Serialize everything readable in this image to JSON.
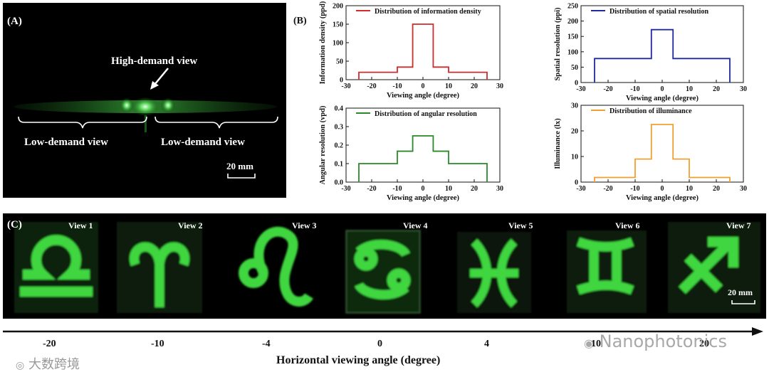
{
  "panel_a": {
    "label": "(A)",
    "high_demand": "High-demand view",
    "low_demand_left": "Low-demand view",
    "low_demand_right": "Low-demand view",
    "scale": "20 mm"
  },
  "panel_b": {
    "label": "(B)"
  },
  "chart_data": [
    {
      "type": "line",
      "title": "Distribution of information density",
      "color": "#d02c2c",
      "xlabel": "Viewing angle (degree)",
      "ylabel": "Information density (ppd)",
      "xlim": [
        -30,
        30
      ],
      "ylim": [
        0,
        200
      ],
      "xticks": [
        -30,
        -20,
        -10,
        0,
        10,
        20,
        30
      ],
      "yticks": [
        0,
        50,
        100,
        150,
        200
      ],
      "x": [
        -25,
        -25,
        -10,
        -10,
        -4,
        -4,
        4,
        4,
        10,
        10,
        25,
        25
      ],
      "y": [
        0,
        20,
        20,
        34,
        34,
        150,
        150,
        34,
        34,
        20,
        20,
        0
      ]
    },
    {
      "type": "line",
      "title": "Distribution of spatial resolution",
      "color": "#1e2a9e",
      "xlabel": "Viewing angle (degree)",
      "ylabel": "Spatial resolution (ppi)",
      "xlim": [
        -30,
        30
      ],
      "ylim": [
        0,
        250
      ],
      "xticks": [
        -30,
        -20,
        -10,
        0,
        10,
        20,
        30
      ],
      "yticks": [
        0,
        50,
        100,
        150,
        200,
        250
      ],
      "x": [
        -25,
        -25,
        -4,
        -4,
        4,
        4,
        25,
        25
      ],
      "y": [
        0,
        78,
        78,
        172,
        172,
        78,
        78,
        0
      ]
    },
    {
      "type": "line",
      "title": "Distribution of angular resolution",
      "color": "#2a8a2a",
      "xlabel": "Viewing angle (degree)",
      "ylabel": "Angular resolution (vpd)",
      "xlim": [
        -30,
        30
      ],
      "ylim": [
        0,
        0.4
      ],
      "xticks": [
        -30,
        -20,
        -10,
        0,
        10,
        20,
        30
      ],
      "yticks": [
        0.0,
        0.1,
        0.2,
        0.3,
        0.4
      ],
      "ytick_labels": [
        "0.0",
        "0.1",
        "0.2",
        "0.3",
        "0.4"
      ],
      "x": [
        -25,
        -25,
        -10,
        -10,
        -4,
        -4,
        4,
        4,
        10,
        10,
        25,
        25
      ],
      "y": [
        0,
        0.1,
        0.1,
        0.167,
        0.167,
        0.25,
        0.25,
        0.167,
        0.167,
        0.1,
        0.1,
        0
      ]
    },
    {
      "type": "line",
      "title": "Distribution of illuminance",
      "color": "#f0a030",
      "xlabel": "Viewing angle (degree)",
      "ylabel": "Illuminance (lx)",
      "xlim": [
        -30,
        30
      ],
      "ylim": [
        0,
        30
      ],
      "xticks": [
        -30,
        -20,
        -10,
        0,
        10,
        20,
        30
      ],
      "yticks": [
        0,
        10,
        20,
        30
      ],
      "x": [
        -25,
        -25,
        -10,
        -10,
        -4,
        -4,
        4,
        4,
        10,
        10,
        25,
        25
      ],
      "y": [
        0,
        1.8,
        1.8,
        9,
        9,
        22.5,
        22.5,
        9,
        9,
        1.8,
        1.8,
        0
      ]
    }
  ],
  "panel_c": {
    "label": "(C)",
    "scale": "20 mm",
    "views": [
      "View 1",
      "View 2",
      "View 3",
      "View 4",
      "View 5",
      "View 6",
      "View 7"
    ],
    "symbols": [
      "libra",
      "aries",
      "leo",
      "cancer",
      "pisces",
      "gemini",
      "sagittarius"
    ]
  },
  "bottom_axis": {
    "ticks": [
      "-20",
      "-10",
      "-4",
      "0",
      "4",
      "10",
      "20"
    ],
    "title": "Horizontal viewing angle (degree)"
  },
  "watermarks": {
    "left": "大数跨境",
    "right": "Nanophotonics"
  }
}
